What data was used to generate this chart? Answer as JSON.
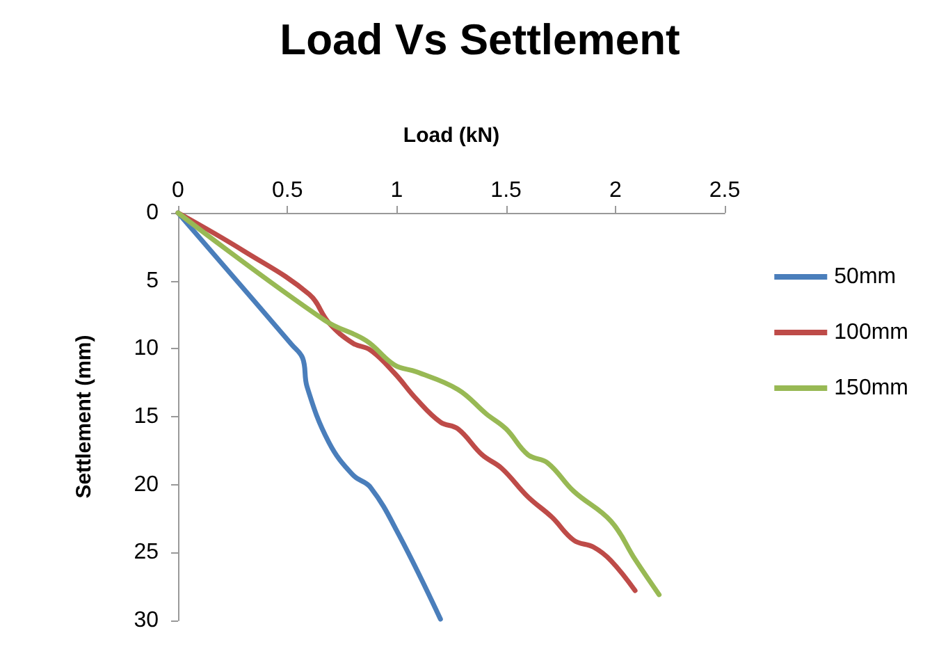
{
  "chart_data": {
    "type": "line",
    "title": "Load Vs Settlement",
    "xlabel": "Load (kN)",
    "ylabel": "Settlement (mm)",
    "xlim": [
      0,
      2.5
    ],
    "xticks": [
      0,
      0.5,
      1,
      1.5,
      2,
      2.5
    ],
    "ylim": [
      30,
      0
    ],
    "yticks": [
      0,
      5,
      10,
      15,
      20,
      25,
      30
    ],
    "grid": false,
    "legend": "right",
    "marker": "none",
    "line_style": "solid",
    "series": [
      {
        "name": "50mm",
        "color": "#4a7ebb",
        "x": [
          0,
          0.52,
          0.57,
          0.59,
          0.69,
          0.8,
          0.88,
          1.01,
          1.2
        ],
        "values": [
          0,
          9.7,
          10.7,
          12.8,
          16.9,
          19.3,
          20.2,
          23.7,
          29.9
        ]
      },
      {
        "name": "100mm",
        "color": "#be4b48",
        "x": [
          0,
          0.3,
          0.6,
          0.69,
          0.8,
          0.88,
          0.99,
          1.09,
          1.2,
          1.28,
          1.39,
          1.48,
          1.6,
          1.71,
          1.81,
          1.9,
          1.98,
          2.09
        ],
        "values": [
          0,
          2.8,
          6.0,
          8.1,
          9.6,
          10.1,
          11.8,
          13.7,
          15.4,
          15.9,
          17.8,
          18.8,
          20.9,
          22.4,
          24.1,
          24.6,
          25.6,
          27.8
        ]
      },
      {
        "name": "150mm",
        "color": "#98b954",
        "x": [
          0,
          0.67,
          0.86,
          0.99,
          1.09,
          1.28,
          1.41,
          1.5,
          1.6,
          1.69,
          1.81,
          1.98,
          2.09,
          2.2
        ],
        "values": [
          0,
          7.9,
          9.4,
          11.2,
          11.7,
          13.0,
          14.8,
          15.9,
          17.8,
          18.4,
          20.5,
          22.7,
          25.5,
          28.1
        ]
      }
    ]
  }
}
